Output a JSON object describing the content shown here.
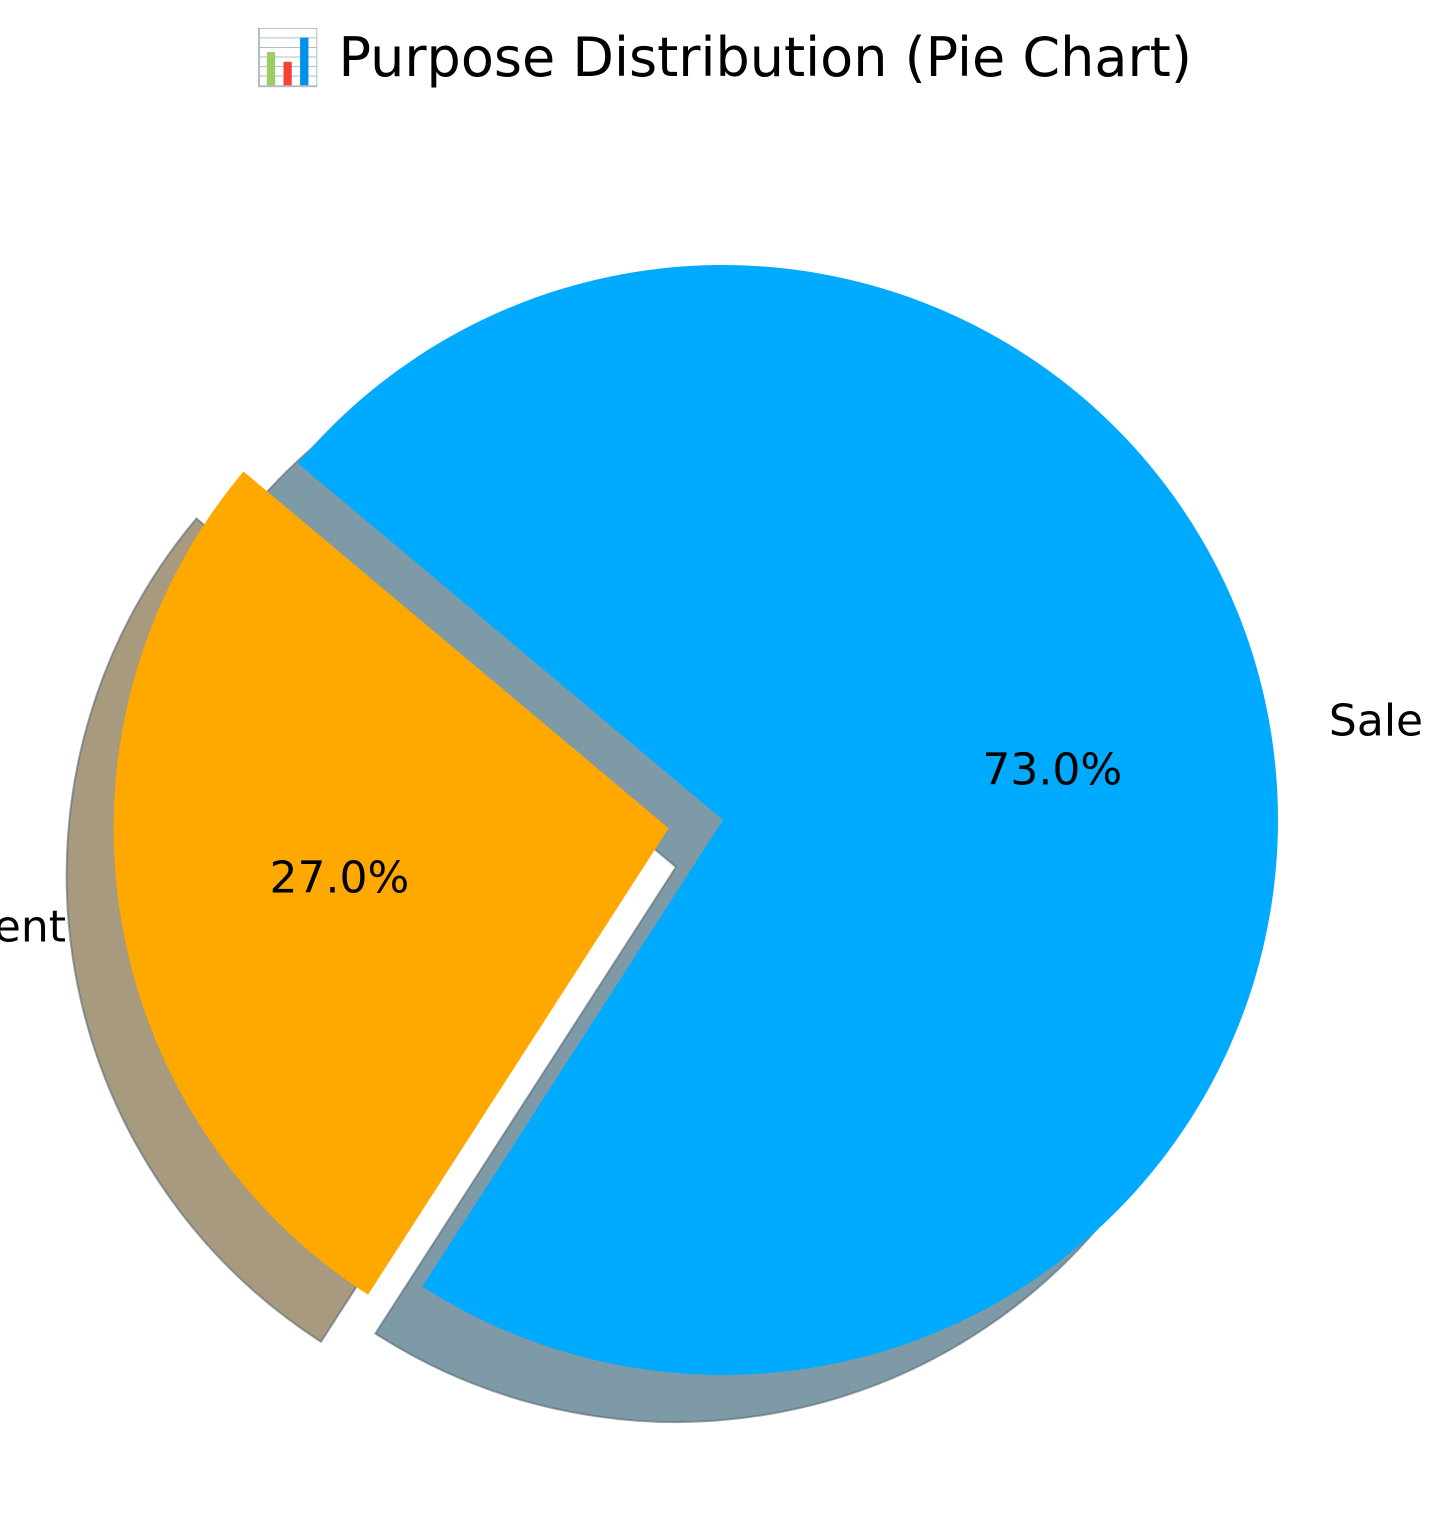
{
  "chart_data": {
    "type": "pie",
    "title": "📊 Purpose Distribution (Pie Chart)",
    "slices": [
      {
        "label": "Rent",
        "value": 27.0,
        "percent_label": "27.0%",
        "color": "#FFA900",
        "shadow_color": "#A79A7F",
        "exploded": true
      },
      {
        "label": "Sale",
        "value": 73.0,
        "percent_label": "73.0%",
        "color": "#00AAFF",
        "shadow_color": "#7F9AA7",
        "exploded": false
      }
    ],
    "start_angle_deg": 140,
    "direction": "counterclockwise",
    "shadow": true,
    "legend": "none"
  }
}
